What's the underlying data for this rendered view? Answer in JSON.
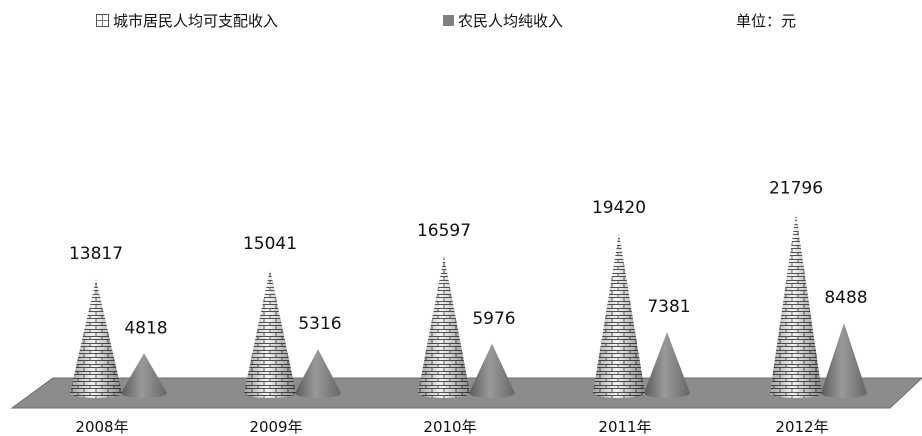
{
  "legend": {
    "urban_label": "城市居民人均可支配收入",
    "rural_label": "农民人均纯收入",
    "unit": "单位：元"
  },
  "colors": {
    "urban_swatch": "#ffffff",
    "urban_brick": "#d9d9d9",
    "rural": "#7f7f7f",
    "floor": "#8c8c8c"
  },
  "chart_data": {
    "type": "bar",
    "shape": "cone",
    "categories": [
      "2008年",
      "2009年",
      "2010年",
      "2011年",
      "2012年"
    ],
    "series": [
      {
        "name": "城市居民人均可支配收入",
        "values": [
          13817,
          15041,
          16597,
          19420,
          21796
        ]
      },
      {
        "name": "农民人均纯收入",
        "values": [
          4818,
          5316,
          5976,
          7381,
          8488
        ]
      }
    ],
    "unit": "元",
    "legend_position": "top",
    "ylim": [
      0,
      22000
    ]
  }
}
